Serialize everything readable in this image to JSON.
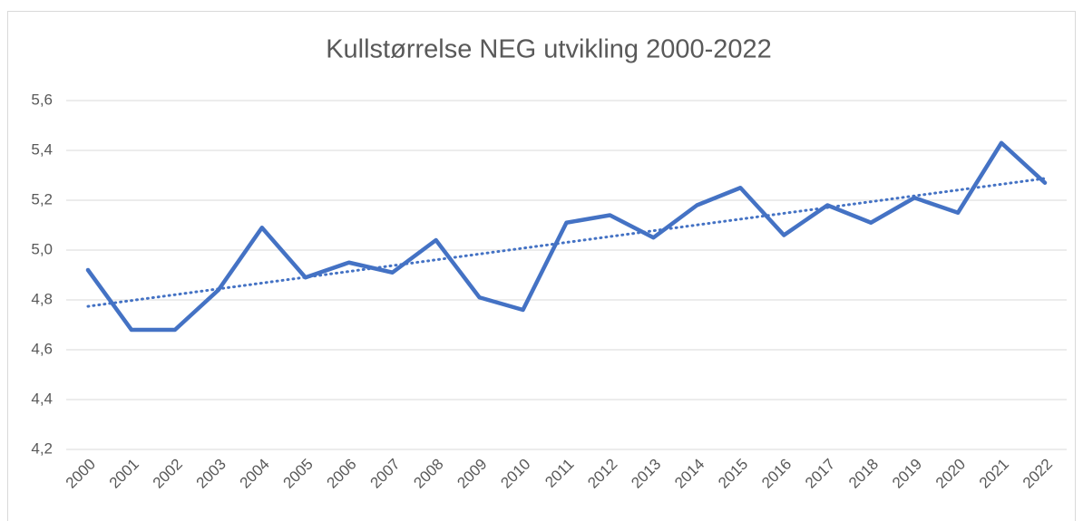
{
  "chart_data": {
    "type": "line",
    "title": "Kullstørrelse NEG utvikling 2000-2022",
    "categories": [
      "2000",
      "2001",
      "2002",
      "2003",
      "2004",
      "2005",
      "2006",
      "2007",
      "2008",
      "2009",
      "2010",
      "2011",
      "2012",
      "2013",
      "2014",
      "2015",
      "2016",
      "2017",
      "2018",
      "2019",
      "2020",
      "2021",
      "2022"
    ],
    "series": [
      {
        "name": "Kullstørrelse",
        "color": "#4472c4",
        "values": [
          4.92,
          4.68,
          4.68,
          4.84,
          5.09,
          4.89,
          4.95,
          4.91,
          5.04,
          4.81,
          4.76,
          5.11,
          5.14,
          5.05,
          5.18,
          5.25,
          5.06,
          5.18,
          5.11,
          5.21,
          5.15,
          5.43,
          5.27
        ]
      }
    ],
    "trendline": "linear",
    "ylim": [
      4.2,
      5.6
    ],
    "yticks": [
      {
        "value": 4.2,
        "label": "4,2"
      },
      {
        "value": 4.4,
        "label": "4,4"
      },
      {
        "value": 4.6,
        "label": "4,6"
      },
      {
        "value": 4.8,
        "label": "4,8"
      },
      {
        "value": 5.0,
        "label": "5,0"
      },
      {
        "value": 5.2,
        "label": "5,2"
      },
      {
        "value": 5.4,
        "label": "5,4"
      },
      {
        "value": 5.6,
        "label": "5,6"
      }
    ],
    "grid": true
  }
}
